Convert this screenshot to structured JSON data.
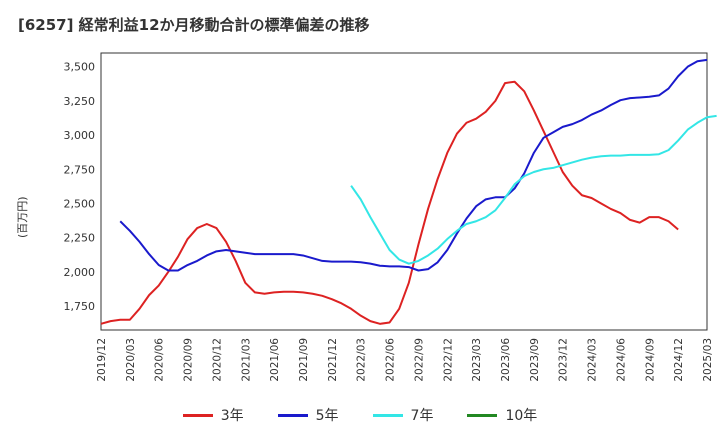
{
  "title": "[6257]  経常利益12か月移動合計の標準偏差の推移",
  "ylabel": "(百万円)",
  "chart_data": {
    "type": "line",
    "title": "[6257]  経常利益12か月移動合計の標準偏差の推移",
    "ylabel": "(百万円)",
    "ylim": [
      1575,
      3600
    ],
    "yticks": [
      1750,
      2000,
      2250,
      2500,
      2750,
      3000,
      3250,
      3500
    ],
    "yticklabels": [
      "1,750",
      "2,000",
      "2,250",
      "2,500",
      "2,750",
      "3,000",
      "3,250",
      "3,500"
    ],
    "xticklabels": [
      "2019/12",
      "2020/03",
      "2020/06",
      "2020/09",
      "2020/12",
      "2021/03",
      "2021/06",
      "2021/09",
      "2021/12",
      "2022/03",
      "2022/06",
      "2022/09",
      "2022/12",
      "2023/03",
      "2023/06",
      "2023/09",
      "2023/12",
      "2024/03",
      "2024/06",
      "2024/09",
      "2024/12",
      "2025/03"
    ],
    "grid": true,
    "legend_position": "bottom",
    "series": [
      {
        "name": "3年",
        "color": "#dd2222",
        "start": "2019/12",
        "values": [
          1620,
          1640,
          1650,
          1650,
          1730,
          1830,
          1900,
          2000,
          2110,
          2240,
          2320,
          2350,
          2320,
          2220,
          2080,
          1920,
          1850,
          1840,
          1850,
          1855,
          1855,
          1850,
          1840,
          1825,
          1800,
          1770,
          1730,
          1680,
          1640,
          1620,
          1630,
          1730,
          1920,
          2200,
          2460,
          2680,
          2870,
          3010,
          3090,
          3120,
          3170,
          3250,
          3380,
          3390,
          3320,
          3180,
          3030,
          2880,
          2730,
          2630,
          2560,
          2540,
          2500,
          2460,
          2430,
          2380,
          2360,
          2400,
          2400,
          2370,
          2310
        ]
      },
      {
        "name": "5年",
        "color": "#1a1acc",
        "start": "2020/02",
        "values": [
          2370,
          2300,
          2220,
          2130,
          2050,
          2010,
          2010,
          2050,
          2080,
          2120,
          2150,
          2160,
          2150,
          2140,
          2130,
          2130,
          2130,
          2130,
          2130,
          2120,
          2100,
          2080,
          2075,
          2075,
          2075,
          2070,
          2060,
          2045,
          2040,
          2040,
          2035,
          2010,
          2020,
          2070,
          2160,
          2280,
          2390,
          2480,
          2530,
          2545,
          2545,
          2610,
          2720,
          2870,
          2980,
          3020,
          3060,
          3080,
          3110,
          3150,
          3180,
          3220,
          3255,
          3270,
          3275,
          3280,
          3290,
          3340,
          3430,
          3500,
          3540,
          3550
        ]
      },
      {
        "name": "7年",
        "color": "#33e6e6",
        "start": "2022/02",
        "values": [
          2630,
          2530,
          2400,
          2280,
          2160,
          2090,
          2060,
          2080,
          2120,
          2170,
          2240,
          2300,
          2350,
          2370,
          2400,
          2450,
          2540,
          2640,
          2700,
          2730,
          2750,
          2760,
          2780,
          2800,
          2820,
          2835,
          2845,
          2850,
          2850,
          2855,
          2855,
          2855,
          2860,
          2890,
          2960,
          3040,
          3090,
          3130,
          3140
        ]
      },
      {
        "name": "10年",
        "color": "#228822",
        "start": "2025/03",
        "values": []
      }
    ]
  }
}
